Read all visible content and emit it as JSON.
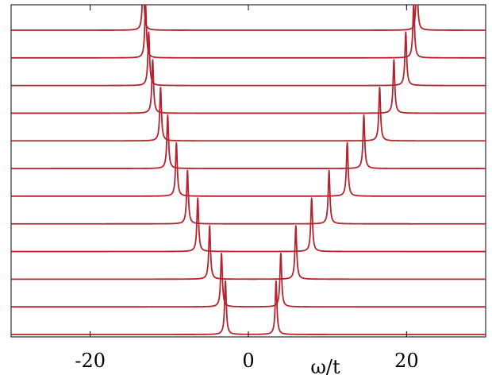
{
  "chart_data": {
    "type": "line",
    "title": "",
    "xlabel": "ω/t",
    "ylabel": "",
    "xlim": [
      -30,
      30
    ],
    "xticks": [
      -20,
      0,
      20
    ],
    "xtick_labels": [
      "-20",
      "0",
      "20"
    ],
    "grid": false,
    "legend": "none",
    "stacked_offsets": true,
    "peak_height_ratio": 2.1,
    "line_color": "#b5232e",
    "axis_color": "#000000",
    "curves": [
      {
        "peaks": [
          -2.9,
          3.5
        ],
        "gamma": 0.13
      },
      {
        "peaks": [
          -3.4,
          4.1
        ],
        "gamma": 0.13
      },
      {
        "peaks": [
          -4.9,
          6.0
        ],
        "gamma": 0.13
      },
      {
        "peaks": [
          -6.4,
          8.0
        ],
        "gamma": 0.13
      },
      {
        "peaks": [
          -7.7,
          10.2
        ],
        "gamma": 0.13
      },
      {
        "peaks": [
          -9.1,
          12.5
        ],
        "gamma": 0.13
      },
      {
        "peaks": [
          -10.2,
          14.6
        ],
        "gamma": 0.13
      },
      {
        "peaks": [
          -11.1,
          16.6
        ],
        "gamma": 0.13
      },
      {
        "peaks": [
          -12.1,
          18.4
        ],
        "gamma": 0.13
      },
      {
        "peaks": [
          -12.6,
          19.9
        ],
        "gamma": 0.13
      },
      {
        "peaks": [
          -13.0,
          20.9
        ],
        "gamma": 0.13
      },
      {
        "peaks": [
          -13.3,
          21.3
        ],
        "gamma": 0.13
      }
    ]
  }
}
